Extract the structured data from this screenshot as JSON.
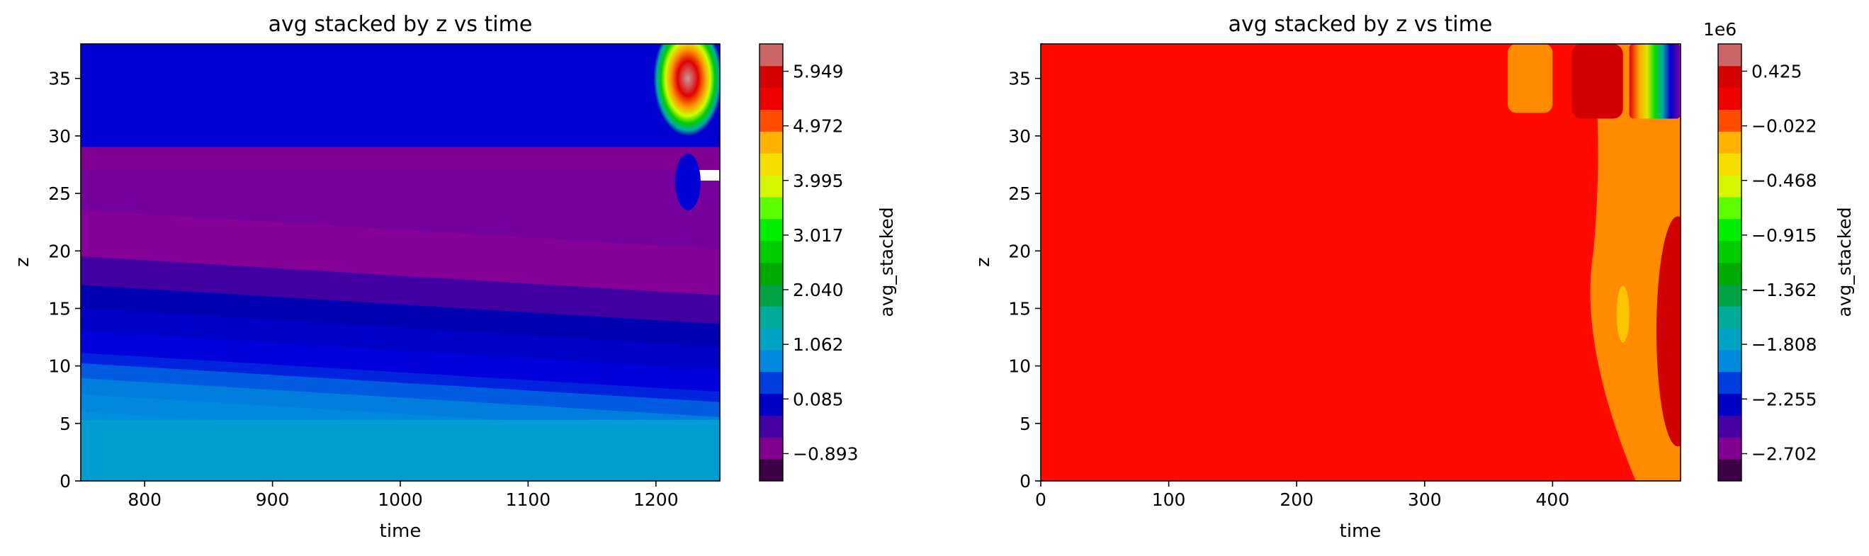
{
  "chart_data": [
    {
      "type": "heatmap",
      "subtype": "filled-contour",
      "title": "avg stacked by z vs time",
      "xlabel": "time",
      "ylabel": "z",
      "xlim": [
        750,
        1250
      ],
      "ylim": [
        0,
        38
      ],
      "x_ticks": [
        800,
        900,
        1000,
        1100,
        1200
      ],
      "y_ticks": [
        0,
        5,
        10,
        15,
        20,
        25,
        30,
        35
      ],
      "colorbar": {
        "label": "avg_stacked",
        "offset_text": "",
        "cmap": "nipy_spectral",
        "ticks": [
          "−0.893",
          "0.085",
          "1.062",
          "2.040",
          "3.017",
          "3.995",
          "4.972",
          "5.949"
        ],
        "tick_values": [
          -0.893,
          0.085,
          1.062,
          2.04,
          3.017,
          3.995,
          4.972,
          5.949
        ],
        "range": [
          -1.382,
          6.438
        ]
      },
      "z_bands": [
        {
          "z_top": 5.3,
          "level": 1.06
        },
        {
          "z_top": 6.7,
          "level": 0.95
        },
        {
          "z_top": 8.5,
          "level": 0.85
        },
        {
          "z_top": 10.0,
          "level": 0.75
        },
        {
          "z_top": 11.4,
          "level": 0.65
        },
        {
          "z_top": 12.7,
          "level": 0.48
        },
        {
          "z_top": 13.6,
          "level": 0.3
        },
        {
          "z_top": 15.5,
          "level": 0.15
        },
        {
          "z_top": 17.5,
          "level": 0.0
        },
        {
          "z_top": 19.5,
          "level": -0.15
        },
        {
          "z_top": 22.0,
          "level": -0.4
        },
        {
          "z_top": 26.0,
          "level": -0.65
        },
        {
          "z_top": 29.5,
          "level": -0.55
        },
        {
          "z_top": 31.5,
          "level": -0.8
        },
        {
          "z_top": 38.0,
          "level": 0.1
        }
      ],
      "late_time_features": [
        {
          "description": "hotspot top",
          "time": [
            1210,
            1240
          ],
          "z": [
            31.5,
            38
          ],
          "level": 6.0
        },
        {
          "description": "blue spot",
          "time": [
            1215,
            1235
          ],
          "z": [
            24,
            28
          ],
          "level": 0.1
        }
      ]
    },
    {
      "type": "heatmap",
      "subtype": "filled-contour",
      "title": "avg stacked by z vs time",
      "xlabel": "time",
      "ylabel": "z",
      "xlim": [
        0,
        500
      ],
      "ylim": [
        0,
        38
      ],
      "x_ticks": [
        0,
        100,
        200,
        300,
        400
      ],
      "y_ticks": [
        0,
        5,
        10,
        15,
        20,
        25,
        30,
        35
      ],
      "colorbar": {
        "label": "avg_stacked",
        "offset_text": "1e6",
        "cmap": "nipy_spectral",
        "ticks": [
          "−2.702",
          "−2.255",
          "−1.808",
          "−1.362",
          "−0.915",
          "−0.468",
          "−0.022",
          "0.425"
        ],
        "tick_values": [
          -2.702,
          -2.255,
          -1.808,
          -1.362,
          -0.915,
          -0.468,
          -0.022,
          0.425
        ],
        "range": [
          -2.925,
          0.648
        ]
      },
      "background_level": 0.1,
      "late_time_features": [
        {
          "description": "light orange band top",
          "time": [
            365,
            400
          ],
          "z": [
            32,
            38
          ],
          "level": -0.05
        },
        {
          "description": "red band top",
          "time": [
            415,
            455
          ],
          "z": [
            31.5,
            38
          ],
          "level": 0.4
        },
        {
          "description": "spectral edge top",
          "time": [
            460,
            500
          ],
          "z": [
            31.5,
            38
          ],
          "level": -1.3
        },
        {
          "description": "light orange region right",
          "time": [
            430,
            500
          ],
          "z": [
            0,
            31
          ],
          "level": -0.05
        },
        {
          "description": "red ridge right",
          "time": [
            475,
            500
          ],
          "z": [
            3,
            23
          ],
          "level": 0.4
        }
      ]
    }
  ]
}
